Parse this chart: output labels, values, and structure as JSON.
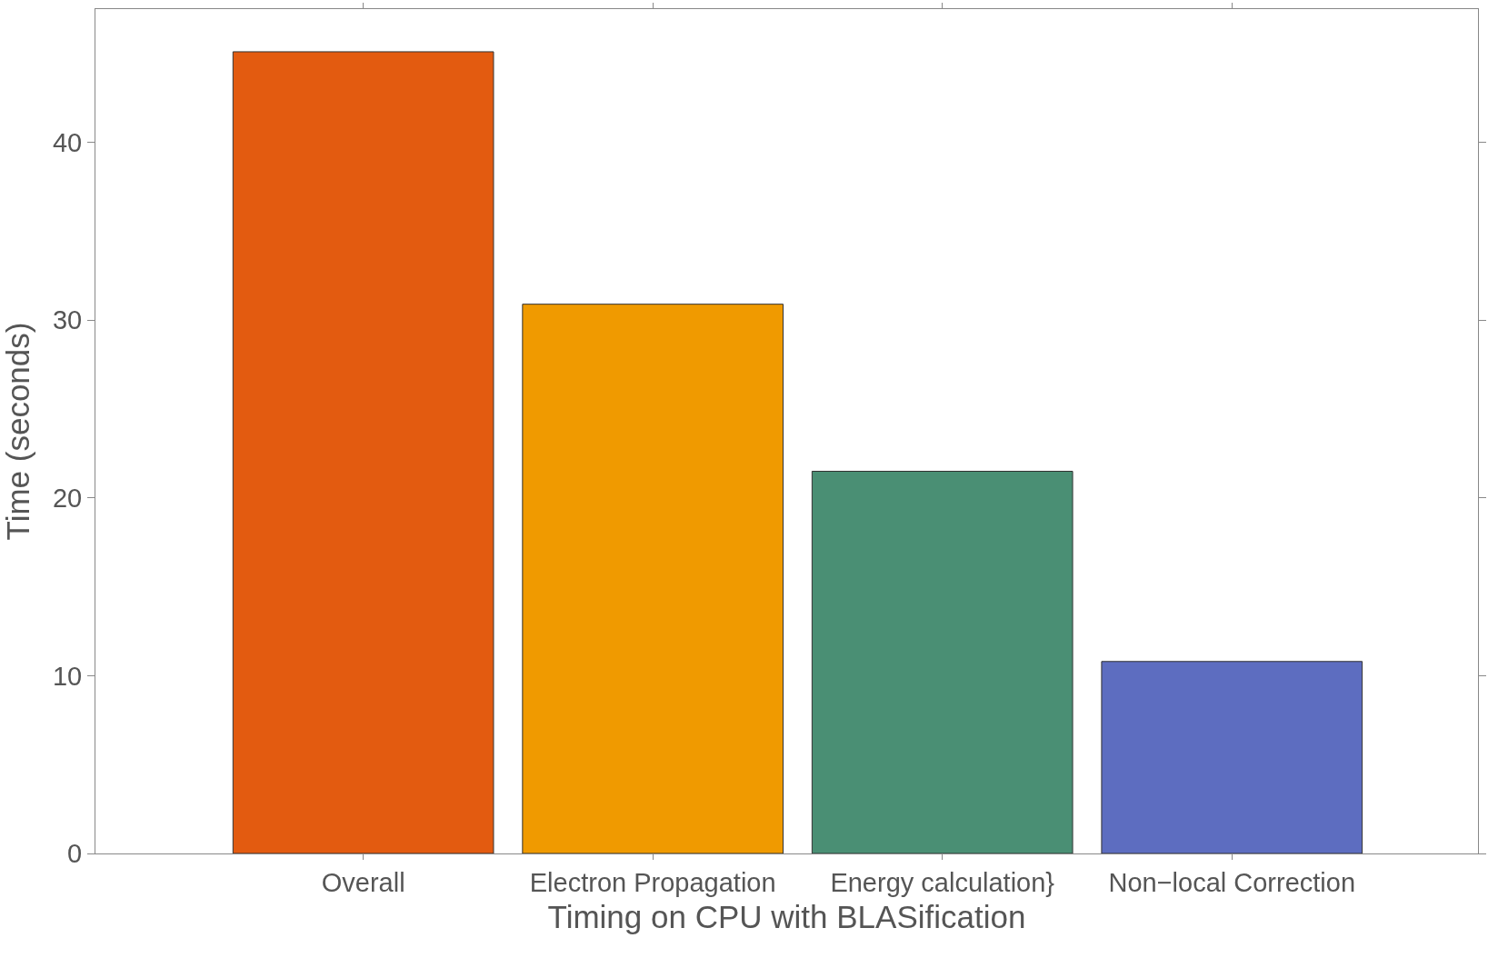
{
  "chart_data": {
    "type": "bar",
    "xlabel": "Timing on CPU with BLASification",
    "ylabel": "Time (seconds)",
    "categories": [
      "Overall",
      "Electron Propagation",
      "Energy calculation}",
      "Non−local Correction"
    ],
    "values": [
      45.1,
      30.9,
      21.5,
      10.8
    ],
    "colors": [
      "#e35b10",
      "#f09a00",
      "#4a8f74",
      "#5d6dc0"
    ],
    "ylim": [
      0,
      47.5
    ],
    "yticks": [
      0,
      10,
      20,
      30,
      40
    ]
  }
}
